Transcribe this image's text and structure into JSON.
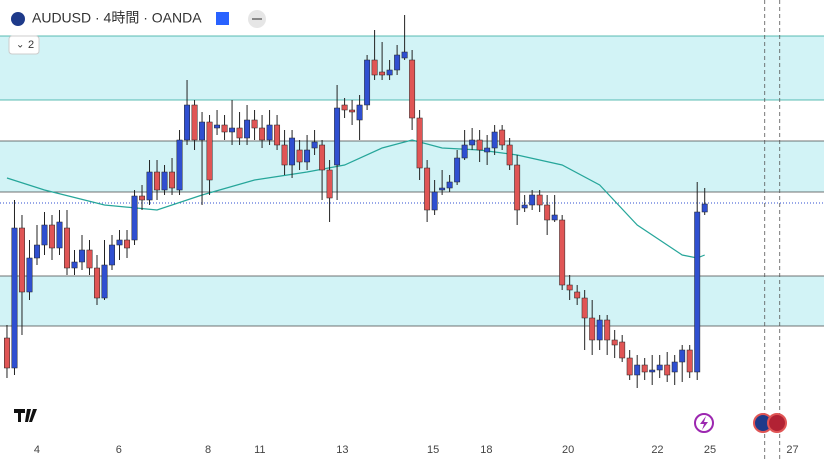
{
  "chart_data": {
    "type": "candlestick",
    "title": "AUDUSD · 4時間 · OANDA",
    "badge": "2",
    "up_color": "#2f4fd0",
    "down_color": "#e05555",
    "ma_color": "#26a69a",
    "zone_color": "#d2f3f6",
    "xlim": [
      -0.93,
      108.9
    ],
    "ylim": [
      0,
      430
    ],
    "xticks": [
      4,
      {
        "value": 14.9,
        "label": "6"
      },
      {
        "value": 26.8,
        "label": "8"
      },
      {
        "value": 33.7,
        "label": "11"
      },
      {
        "value": 44.7,
        "label": "13"
      },
      {
        "value": 56.8,
        "label": "15"
      },
      {
        "value": 63.9,
        "label": "18"
      },
      {
        "value": 74.8,
        "label": "20"
      },
      {
        "value": 86.7,
        "label": "22"
      },
      {
        "value": 93.7,
        "label": "25"
      },
      {
        "value": 104.7,
        "label": "27"
      }
    ],
    "zones": [
      [
        330,
        394
      ],
      [
        238,
        289
      ],
      [
        104,
        154
      ]
    ],
    "price_line": 227,
    "session_lines": [
      101,
      103
    ],
    "ma": {
      "x": [
        0,
        5,
        13,
        20,
        26,
        33,
        40,
        45,
        50,
        54,
        58,
        63,
        68,
        74,
        79,
        84,
        90,
        92,
        93
      ],
      "values": [
        252,
        240,
        225,
        220,
        235,
        250,
        258,
        265,
        282,
        290,
        282,
        280,
        275,
        265,
        245,
        205,
        175,
        172,
        175
      ]
    },
    "candles": [
      [
        92,
        62,
        105,
        52
      ],
      [
        62,
        202,
        230,
        55
      ],
      [
        202,
        138,
        215,
        95
      ],
      [
        138,
        172,
        190,
        130
      ],
      [
        172,
        185,
        205,
        165
      ],
      [
        185,
        205,
        218,
        175
      ],
      [
        205,
        182,
        215,
        170
      ],
      [
        182,
        208,
        220,
        175
      ],
      [
        202,
        162,
        220,
        155
      ],
      [
        162,
        168,
        180,
        155
      ],
      [
        168,
        180,
        195,
        160
      ],
      [
        180,
        162,
        190,
        155
      ],
      [
        162,
        132,
        175,
        125
      ],
      [
        132,
        165,
        190,
        130
      ],
      [
        165,
        185,
        195,
        160
      ],
      [
        185,
        190,
        200,
        170
      ],
      [
        190,
        182,
        200,
        172
      ],
      [
        190,
        234,
        240,
        185
      ],
      [
        234,
        230,
        245,
        220
      ],
      [
        230,
        258,
        270,
        225
      ],
      [
        258,
        240,
        270,
        230
      ],
      [
        240,
        258,
        265,
        235
      ],
      [
        258,
        242,
        272,
        235
      ],
      [
        240,
        290,
        300,
        235
      ],
      [
        290,
        325,
        350,
        285
      ],
      [
        325,
        290,
        330,
        280
      ],
      [
        290,
        308,
        318,
        225
      ],
      [
        308,
        250,
        315,
        235
      ],
      [
        302,
        305,
        320,
        295
      ],
      [
        305,
        298,
        315,
        290
      ],
      [
        298,
        302,
        330,
        285
      ],
      [
        302,
        292,
        318,
        285
      ],
      [
        292,
        310,
        325,
        285
      ],
      [
        310,
        302,
        320,
        290
      ],
      [
        302,
        290,
        315,
        282
      ],
      [
        290,
        305,
        320,
        285
      ],
      [
        305,
        285,
        315,
        280
      ],
      [
        285,
        265,
        300,
        255
      ],
      [
        265,
        292,
        300,
        252
      ],
      [
        280,
        268,
        290,
        260
      ],
      [
        268,
        280,
        295,
        260
      ],
      [
        282,
        288,
        300,
        275
      ],
      [
        285,
        260,
        290,
        230
      ],
      [
        260,
        232,
        270,
        208
      ],
      [
        265,
        322,
        345,
        230
      ],
      [
        325,
        320,
        332,
        312
      ],
      [
        320,
        318,
        330,
        305
      ],
      [
        310,
        325,
        335,
        290
      ],
      [
        325,
        370,
        375,
        320
      ],
      [
        370,
        355,
        400,
        350
      ],
      [
        358,
        355,
        388,
        350
      ],
      [
        355,
        360,
        370,
        350
      ],
      [
        360,
        375,
        385,
        355
      ],
      [
        372,
        378,
        415,
        370
      ],
      [
        370,
        312,
        380,
        300
      ],
      [
        312,
        262,
        320,
        250
      ],
      [
        262,
        220,
        270,
        208
      ],
      [
        220,
        238,
        250,
        215
      ],
      [
        240,
        242,
        260,
        235
      ],
      [
        242,
        248,
        255,
        238
      ],
      [
        248,
        272,
        280,
        245
      ],
      [
        272,
        285,
        300,
        270
      ],
      [
        285,
        290,
        302,
        280
      ],
      [
        290,
        280,
        300,
        268
      ],
      [
        278,
        282,
        295,
        265
      ],
      [
        282,
        298,
        305,
        275
      ],
      [
        300,
        285,
        305,
        280
      ],
      [
        285,
        265,
        292,
        260
      ],
      [
        265,
        220,
        275,
        205
      ],
      [
        222,
        225,
        235,
        218
      ],
      [
        225,
        235,
        240,
        220
      ],
      [
        235,
        225,
        240,
        218
      ],
      [
        225,
        210,
        235,
        195
      ],
      [
        210,
        215,
        235,
        208
      ],
      [
        210,
        145,
        215,
        140
      ],
      [
        145,
        140,
        155,
        130
      ],
      [
        138,
        132,
        145,
        125
      ],
      [
        132,
        112,
        140,
        80
      ],
      [
        112,
        90,
        130,
        75
      ],
      [
        90,
        110,
        115,
        80
      ],
      [
        110,
        90,
        115,
        75
      ],
      [
        90,
        85,
        100,
        72
      ],
      [
        88,
        72,
        95,
        68
      ],
      [
        72,
        55,
        80,
        50
      ],
      [
        55,
        65,
        75,
        42
      ],
      [
        65,
        58,
        72,
        50
      ],
      [
        58,
        60,
        75,
        45
      ],
      [
        60,
        65,
        75,
        52
      ],
      [
        65,
        55,
        78,
        48
      ],
      [
        58,
        68,
        75,
        45
      ],
      [
        68,
        80,
        85,
        48
      ],
      [
        80,
        58,
        85,
        52
      ],
      [
        58,
        218,
        248,
        50
      ],
      [
        218,
        226,
        242,
        215
      ]
    ]
  }
}
